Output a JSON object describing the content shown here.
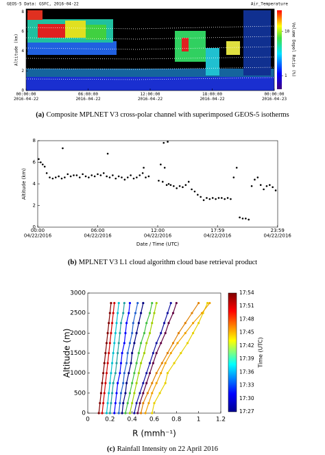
{
  "chart_data": [
    {
      "type": "image",
      "title": "GEOS-5 Data: GSFC, 2016-04-22",
      "variable": "Air_Temperature",
      "ylabel": "Altitude (km)",
      "xlim": [
        0,
        24
      ],
      "xticks": [
        {
          "value": 0,
          "label": "00:00:00 2016-04-22"
        },
        {
          "value": 6,
          "label": "06:00:00 2016-04-22"
        },
        {
          "value": 12,
          "label": "12:00:00 2016-04-22"
        },
        {
          "value": 18,
          "label": "18:00:00 2016-04-22"
        },
        {
          "value": 24,
          "label": "00:00:00 2016-04-23"
        }
      ],
      "ylim": [
        0,
        8.3
      ],
      "yticks": [
        0,
        2,
        4,
        6,
        8
      ],
      "colorbar": {
        "label": "Volume Depol Ratio (%)",
        "lim": [
          0.5,
          30
        ],
        "ticks": [
          1,
          10
        ],
        "log": true
      }
    },
    {
      "type": "scatter",
      "ylabel": "Altitude (km)",
      "xlabel": "Date / Time (UTC)",
      "color": "#000000",
      "x": [
        0.1,
        0.3,
        0.5,
        0.7,
        0.9,
        1.2,
        1.5,
        1.8,
        2.1,
        2.4,
        2.7,
        3.0,
        3.3,
        3.6,
        3.9,
        4.2,
        4.5,
        4.8,
        5.1,
        5.4,
        5.7,
        6.0,
        6.3,
        6.6,
        6.9,
        7.2,
        7.5,
        7.8,
        8.1,
        8.4,
        8.7,
        9.0,
        9.3,
        9.6,
        9.9,
        10.2,
        10.5,
        10.8,
        11.1,
        12.1,
        12.3,
        12.5,
        12.7,
        12.9,
        13.1,
        13.3,
        13.6,
        13.9,
        14.2,
        14.5,
        14.8,
        15.1,
        15.4,
        15.7,
        16.0,
        16.3,
        16.6,
        16.9,
        17.2,
        17.5,
        17.8,
        18.1,
        18.4,
        18.7,
        19.0,
        19.3,
        19.6,
        19.9,
        20.2,
        20.5,
        20.8,
        21.1,
        21.4,
        21.7,
        22.0,
        22.3,
        22.6,
        22.9,
        23.2,
        23.5,
        23.8,
        2.5,
        10.6,
        12.6,
        13.0,
        7.0
      ],
      "values": [
        6.3,
        6.0,
        5.8,
        5.6,
        5.0,
        4.6,
        4.5,
        4.6,
        4.7,
        4.5,
        4.6,
        4.9,
        4.7,
        4.8,
        4.8,
        4.6,
        4.9,
        4.7,
        4.6,
        4.8,
        4.7,
        4.9,
        4.8,
        5.0,
        4.7,
        4.6,
        4.8,
        4.5,
        4.7,
        4.6,
        4.4,
        4.6,
        4.8,
        4.5,
        4.6,
        4.8,
        5.0,
        4.6,
        4.7,
        4.3,
        5.8,
        4.2,
        5.5,
        3.9,
        4.0,
        3.9,
        3.8,
        3.6,
        3.8,
        3.7,
        3.9,
        4.2,
        3.5,
        3.3,
        3.0,
        2.8,
        2.5,
        2.7,
        2.6,
        2.7,
        2.6,
        2.7,
        2.7,
        2.6,
        2.7,
        2.6,
        4.6,
        5.5,
        0.9,
        0.8,
        0.8,
        0.7,
        3.8,
        4.4,
        4.6,
        3.9,
        3.5,
        3.8,
        3.9,
        3.7,
        3.4,
        7.3,
        5.5,
        7.8,
        7.9,
        6.8
      ],
      "xlim": [
        0,
        24
      ],
      "xticks": [
        {
          "value": 0,
          "label": "00:00 04/22/2016"
        },
        {
          "value": 6,
          "label": "06:00 04/22/2016"
        },
        {
          "value": 12,
          "label": "12:00 04/22/2016"
        },
        {
          "value": 17.98,
          "label": "17:59 04/22/2016"
        },
        {
          "value": 23.98,
          "label": "23:59 04/22/2016"
        }
      ],
      "ylim": [
        0,
        8
      ],
      "yticks": [
        0,
        2,
        4,
        6,
        8
      ]
    },
    {
      "type": "line",
      "ylabel": "Altitude (m)",
      "xlabel": "R (mmh⁻¹)",
      "markers": true,
      "y": [
        0,
        250,
        500,
        750,
        1000,
        1250,
        1500,
        1750,
        2000,
        2250,
        2500,
        2750
      ],
      "series": [
        {
          "color": "#800000",
          "values": [
            0.1,
            0.11,
            0.12,
            0.13,
            0.14,
            0.15,
            0.16,
            0.17,
            0.18,
            0.19,
            0.2,
            0.21
          ]
        },
        {
          "color": "#d00000",
          "values": [
            0.13,
            0.14,
            0.15,
            0.16,
            0.17,
            0.18,
            0.19,
            0.2,
            0.21,
            0.22,
            0.23,
            0.24
          ]
        },
        {
          "color": "#00c0d0",
          "values": [
            0.17,
            0.18,
            0.19,
            0.2,
            0.21,
            0.22,
            0.23,
            0.24,
            0.25,
            0.26,
            0.27,
            0.28
          ]
        },
        {
          "color": "#20a0a0",
          "values": [
            0.2,
            0.21,
            0.22,
            0.23,
            0.25,
            0.26,
            0.27,
            0.28,
            0.29,
            0.3,
            0.32,
            0.33
          ]
        },
        {
          "color": "#0000ff",
          "values": [
            0.24,
            0.25,
            0.26,
            0.27,
            0.29,
            0.3,
            0.31,
            0.33,
            0.34,
            0.35,
            0.37,
            0.38
          ]
        },
        {
          "color": "#2060d0",
          "values": [
            0.28,
            0.29,
            0.3,
            0.32,
            0.33,
            0.35,
            0.36,
            0.38,
            0.4,
            0.41,
            0.43,
            0.45
          ]
        },
        {
          "color": "#000080",
          "values": [
            0.31,
            0.32,
            0.34,
            0.35,
            0.37,
            0.39,
            0.4,
            0.42,
            0.44,
            0.46,
            0.48,
            0.5
          ]
        },
        {
          "color": "#40c040",
          "values": [
            0.34,
            0.36,
            0.38,
            0.4,
            0.42,
            0.44,
            0.46,
            0.48,
            0.51,
            0.53,
            0.56,
            0.58
          ]
        },
        {
          "color": "#a0d000",
          "values": [
            0.38,
            0.4,
            0.42,
            0.44,
            0.46,
            0.48,
            0.51,
            0.53,
            0.56,
            0.58,
            0.6,
            0.62
          ]
        },
        {
          "color": "#1010a0",
          "values": [
            0.42,
            0.44,
            0.47,
            0.5,
            0.53,
            0.56,
            0.59,
            0.62,
            0.66,
            0.69,
            0.72,
            0.75
          ]
        },
        {
          "color": "#600040",
          "values": [
            0.45,
            0.47,
            0.5,
            0.53,
            0.56,
            0.59,
            0.62,
            0.66,
            0.7,
            0.73,
            0.77,
            0.8
          ]
        },
        {
          "color": "#e08000",
          "values": [
            0.48,
            0.5,
            0.54,
            0.58,
            0.62,
            0.67,
            0.72,
            0.77,
            0.82,
            0.88,
            0.94,
            1.0
          ]
        },
        {
          "color": "#e8d000",
          "values": [
            0.58,
            0.6,
            0.65,
            0.7,
            0.72,
            0.78,
            0.84,
            0.9,
            0.95,
            1.0,
            1.04,
            1.08
          ]
        },
        {
          "color": "#f0a000",
          "values": [
            0.52,
            0.55,
            0.58,
            0.62,
            0.66,
            0.7,
            0.75,
            0.81,
            0.88,
            0.95,
            1.03,
            1.1
          ]
        }
      ],
      "xlim": [
        0,
        1.2
      ],
      "xticks": [
        0,
        0.2,
        0.4,
        0.6,
        0.8,
        1,
        1.2
      ],
      "ylim": [
        0,
        3000
      ],
      "yticks": [
        0,
        500,
        1000,
        1500,
        2000,
        2500,
        3000
      ],
      "colorbar": {
        "label": "Time (UTC)",
        "ticks": [
          "17:27",
          "17:30",
          "17:33",
          "17:36",
          "17:39",
          "17:42",
          "17:45",
          "17:48",
          "17:51",
          "17:54"
        ]
      }
    }
  ],
  "captions": [
    {
      "label": "(a)",
      "text": "Composite MPLNET V3 cross-polar channel with superimposed GEOS-5 isotherms"
    },
    {
      "label": "(b)",
      "text": "MPLNET V3 L1 cloud algorithm cloud base retrieval product"
    },
    {
      "label": "(c)",
      "text": "Rainfall Intensity on 22 April 2016"
    }
  ]
}
